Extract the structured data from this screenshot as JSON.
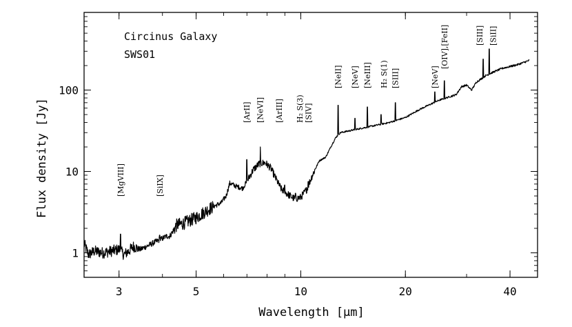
{
  "chart_data": {
    "type": "line",
    "title": "Circinus Galaxy",
    "subtitle": "SWS01",
    "xlabel": "Wavelength [μm]",
    "ylabel": "Flux density [Jy]",
    "xscale": "log",
    "yscale": "log",
    "xlim": [
      2.38,
      48
    ],
    "ylim": [
      0.5,
      900
    ],
    "xticks": [
      {
        "value": 3,
        "label": "3"
      },
      {
        "value": 5,
        "label": "5"
      },
      {
        "value": 10,
        "label": "10"
      },
      {
        "value": 20,
        "label": "20"
      },
      {
        "value": 40,
        "label": "40"
      }
    ],
    "yticks": [
      {
        "value": 1,
        "label": "1"
      },
      {
        "value": 10,
        "label": "10"
      },
      {
        "value": 100,
        "label": "100"
      }
    ],
    "series": [
      {
        "name": "SWS01 spectrum",
        "points": [
          [
            2.38,
            1.3
          ],
          [
            2.45,
            0.95
          ],
          [
            2.55,
            1.05
          ],
          [
            2.7,
            1.0
          ],
          [
            2.85,
            1.05
          ],
          [
            3.0,
            1.1
          ],
          [
            3.1,
            0.95
          ],
          [
            3.2,
            1.05
          ],
          [
            3.3,
            1.2
          ],
          [
            3.45,
            1.1
          ],
          [
            3.6,
            1.2
          ],
          [
            3.8,
            1.35
          ],
          [
            4.0,
            1.5
          ],
          [
            4.1,
            1.6
          ],
          [
            4.2,
            1.6
          ],
          [
            4.4,
            2.2
          ],
          [
            4.6,
            2.3
          ],
          [
            4.8,
            2.5
          ],
          [
            5.0,
            2.7
          ],
          [
            5.3,
            3.2
          ],
          [
            5.6,
            3.7
          ],
          [
            5.9,
            4.1
          ],
          [
            6.1,
            5.0
          ],
          [
            6.25,
            7.2
          ],
          [
            6.5,
            6.6
          ],
          [
            6.8,
            6.2
          ],
          [
            7.0,
            7.5
          ],
          [
            7.3,
            10.5
          ],
          [
            7.6,
            12.5
          ],
          [
            7.9,
            12.8
          ],
          [
            8.2,
            11.0
          ],
          [
            8.5,
            8.0
          ],
          [
            8.8,
            6.0
          ],
          [
            9.2,
            5.2
          ],
          [
            9.6,
            4.6
          ],
          [
            10.0,
            4.8
          ],
          [
            10.4,
            6.0
          ],
          [
            10.8,
            9.0
          ],
          [
            11.3,
            13.5
          ],
          [
            11.8,
            15.0
          ],
          [
            12.2,
            20.0
          ],
          [
            12.6,
            26.0
          ],
          [
            13.0,
            30.0
          ],
          [
            14.0,
            32.0
          ],
          [
            15.0,
            34.0
          ],
          [
            16.0,
            36.0
          ],
          [
            18.0,
            40.0
          ],
          [
            20.0,
            46.0
          ],
          [
            22.0,
            58.0
          ],
          [
            25.0,
            75.0
          ],
          [
            28.0,
            88.0
          ],
          [
            29.0,
            110.0
          ],
          [
            30.0,
            115.0
          ],
          [
            31.0,
            100.0
          ],
          [
            32.0,
            125.0
          ],
          [
            34.0,
            150.0
          ],
          [
            36.0,
            168.0
          ],
          [
            38.0,
            185.0
          ],
          [
            40.0,
            195.0
          ],
          [
            42.0,
            205.0
          ],
          [
            44.0,
            220.0
          ],
          [
            45.5,
            232.0
          ]
        ]
      }
    ],
    "emission_lines": [
      {
        "wavelength": 3.03,
        "peak": 1.7,
        "label": "[MgVIII]"
      },
      {
        "wavelength": 3.93,
        "peak": 1.65,
        "label": "[SiIX]"
      },
      {
        "wavelength": 6.99,
        "peak": 14.0,
        "label": "[ArII]"
      },
      {
        "wavelength": 7.65,
        "peak": 20.0,
        "label": "[NeVI]"
      },
      {
        "wavelength": 8.99,
        "peak": 6.8,
        "label": "[ArIII]"
      },
      {
        "wavelength": 9.66,
        "peak": 5.4,
        "label": "H₂ S(3)"
      },
      {
        "wavelength": 10.51,
        "peak": 7.5,
        "label": "[SIV]"
      },
      {
        "wavelength": 12.81,
        "peak": 65.0,
        "label": "[NeII]"
      },
      {
        "wavelength": 14.32,
        "peak": 45.0,
        "label": "[NeV]"
      },
      {
        "wavelength": 15.55,
        "peak": 62.0,
        "label": "[NeIII]"
      },
      {
        "wavelength": 17.03,
        "peak": 50.0,
        "label": "H₂ S(1)"
      },
      {
        "wavelength": 18.71,
        "peak": 70.0,
        "label": "[SIII]"
      },
      {
        "wavelength": 24.32,
        "peak": 95.0,
        "label": "[NeV]"
      },
      {
        "wavelength": 25.9,
        "peak": 130.0,
        "label": "[OIV],[FeII]"
      },
      {
        "wavelength": 33.48,
        "peak": 240.0,
        "label": "[SIII]"
      },
      {
        "wavelength": 34.82,
        "peak": 320.0,
        "label": "[SiII]"
      }
    ]
  }
}
